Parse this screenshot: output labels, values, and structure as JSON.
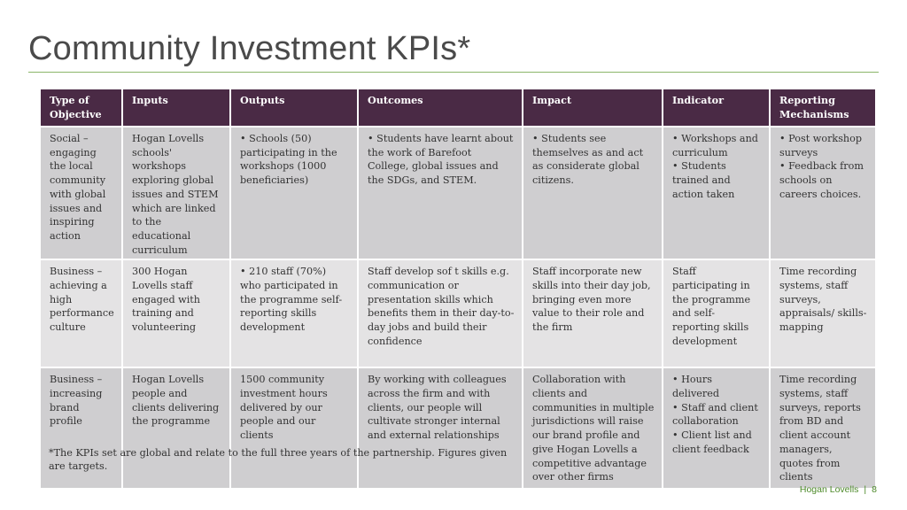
{
  "title": "Community Investment KPIs*",
  "table": {
    "headers": [
      "Type of Objective",
      "Inputs",
      "Outputs",
      "Outcomes",
      "Impact",
      "Indicator",
      "Reporting Mechanisms"
    ],
    "rows": [
      [
        "Social – engaging the local community with global issues and inspiring action",
        "Hogan Lovells schools' workshops exploring global issues and STEM which are linked to the educational curriculum",
        "• Schools  (50) participating  in the workshops (1000 beneficiaries)",
        "• Students  have learnt about the work of Barefoot College, global issues and the SDGs, and STEM.",
        "• Students  see themselves as and act as considerate global citizens.",
        "• Workshops and curriculum\n• Students trained and action taken",
        "• Post workshop surveys\n• Feedback from schools on careers choices."
      ],
      [
        "Business – achieving a high performance culture",
        "300 Hogan Lovells staff engaged with training and volunteering",
        "• 210 staff (70%) who participated in the programme self-reporting skills development",
        "Staff develop sof t skills e.g. communication or presentation skills which benefits them in their day-to-day jobs and build their confidence",
        "Staff incorporate new skills into their day job, bringing even more value to their role and the firm",
        "Staff participating in the programme and self-reporting skills development",
        "Time recording systems, staff surveys, appraisals/ skills-mapping"
      ],
      [
        "Business – increasing brand profile",
        "Hogan Lovells people and clients delivering the programme",
        "1500 community investment hours delivered by our people and our clients",
        "By working with colleagues across the firm and with clients, our people will cultivate stronger internal and external relationships",
        "Collaboration with clients and communities in multiple jurisdictions will raise our brand profile and give Hogan Lovells a competitive advantage over other firms",
        "• Hours delivered\n• Staff and client collaboration\n• Client list and client feedback",
        "Time recording systems, staff surveys, reports from BD and client account managers, quotes from clients"
      ]
    ]
  },
  "footnote": "*The KPIs set are global and relate to the full three years of the partnership.  Figures given are targets.",
  "footer": {
    "brand": "Hogan Lovells",
    "separator": "|",
    "page_number": "8"
  },
  "colors": {
    "header_bg": "#4a2a45",
    "row_dark": "#cfced0",
    "row_light": "#e4e3e4",
    "accent_green": "#8bb56a",
    "brand_green": "#4d8a2a"
  }
}
